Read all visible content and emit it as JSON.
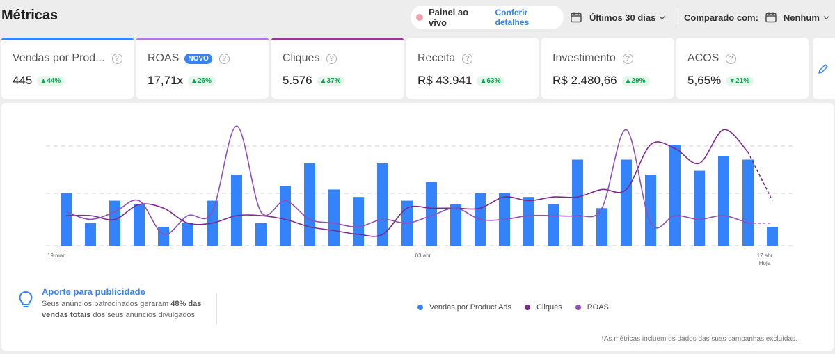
{
  "page": {
    "title": "Métricas"
  },
  "header": {
    "live_label": "Painel ao vivo",
    "live_link": "Conferir detalhes",
    "period_label": "Últimos 30 dias",
    "compare_label": "Comparado com:",
    "compare_value": "Nenhum"
  },
  "cards": [
    {
      "name": "Vendas por Prod...",
      "value": "445",
      "delta": "▲44%",
      "color": "#3483fa"
    },
    {
      "name": "ROAS",
      "tag": "NOVO",
      "value": "17,71x",
      "delta": "▲26%",
      "color": "#a97bd6"
    },
    {
      "name": "Cliques",
      "value": "5.576",
      "delta": "▲37%",
      "color": "#8e3f8e"
    },
    {
      "name": "Receita",
      "value": "R$ 43.941",
      "delta": "▲63%"
    },
    {
      "name": "Investimento",
      "value": "R$ 2.480,66",
      "delta": "▲29%"
    },
    {
      "name": "ACOS",
      "value": "5,65%",
      "delta": "▼21%"
    }
  ],
  "chart_data": {
    "type": "bar",
    "x_tick_labels": [
      "19 mar",
      "03 abr",
      "17 abr",
      "Hoje"
    ],
    "series": [
      {
        "name": "Vendas por Product Ads",
        "type": "bar",
        "color": "#3483fa",
        "values": [
          14,
          6,
          12,
          11,
          5,
          6,
          12,
          19,
          6,
          16,
          22,
          15,
          13,
          22,
          12,
          17,
          11,
          14,
          14,
          13,
          11,
          23,
          10,
          23,
          19,
          27,
          20,
          24,
          23,
          5
        ]
      },
      {
        "name": "Cliques",
        "type": "line",
        "color": "#7b2b8c",
        "values": [
          8,
          8,
          7,
          11,
          10,
          6,
          6,
          8,
          8,
          7,
          5,
          4,
          3,
          3,
          10,
          10,
          10,
          10,
          13,
          12,
          13,
          13,
          15,
          15,
          27,
          26,
          22,
          31,
          25,
          12
        ]
      },
      {
        "name": "ROAS",
        "type": "line",
        "color": "#9050b5",
        "values": [
          9,
          7,
          9,
          12,
          3,
          8,
          9,
          32,
          9,
          12,
          7,
          6,
          5,
          7,
          6,
          8,
          10,
          7,
          7,
          8,
          8,
          8,
          10,
          31,
          6,
          8,
          7,
          8,
          6,
          6
        ]
      }
    ],
    "grid": true,
    "legend_position": "bottom"
  },
  "tip": {
    "title": "Aporte para publicidade",
    "text_1": "Seus anúncios patrocinados geraram ",
    "text_bold_1": "48% das vendas totais",
    "text_2": " dos seus anúncios divulgados"
  },
  "footnote": "*As métricas incluem os dados das suas campanhas excluídas."
}
